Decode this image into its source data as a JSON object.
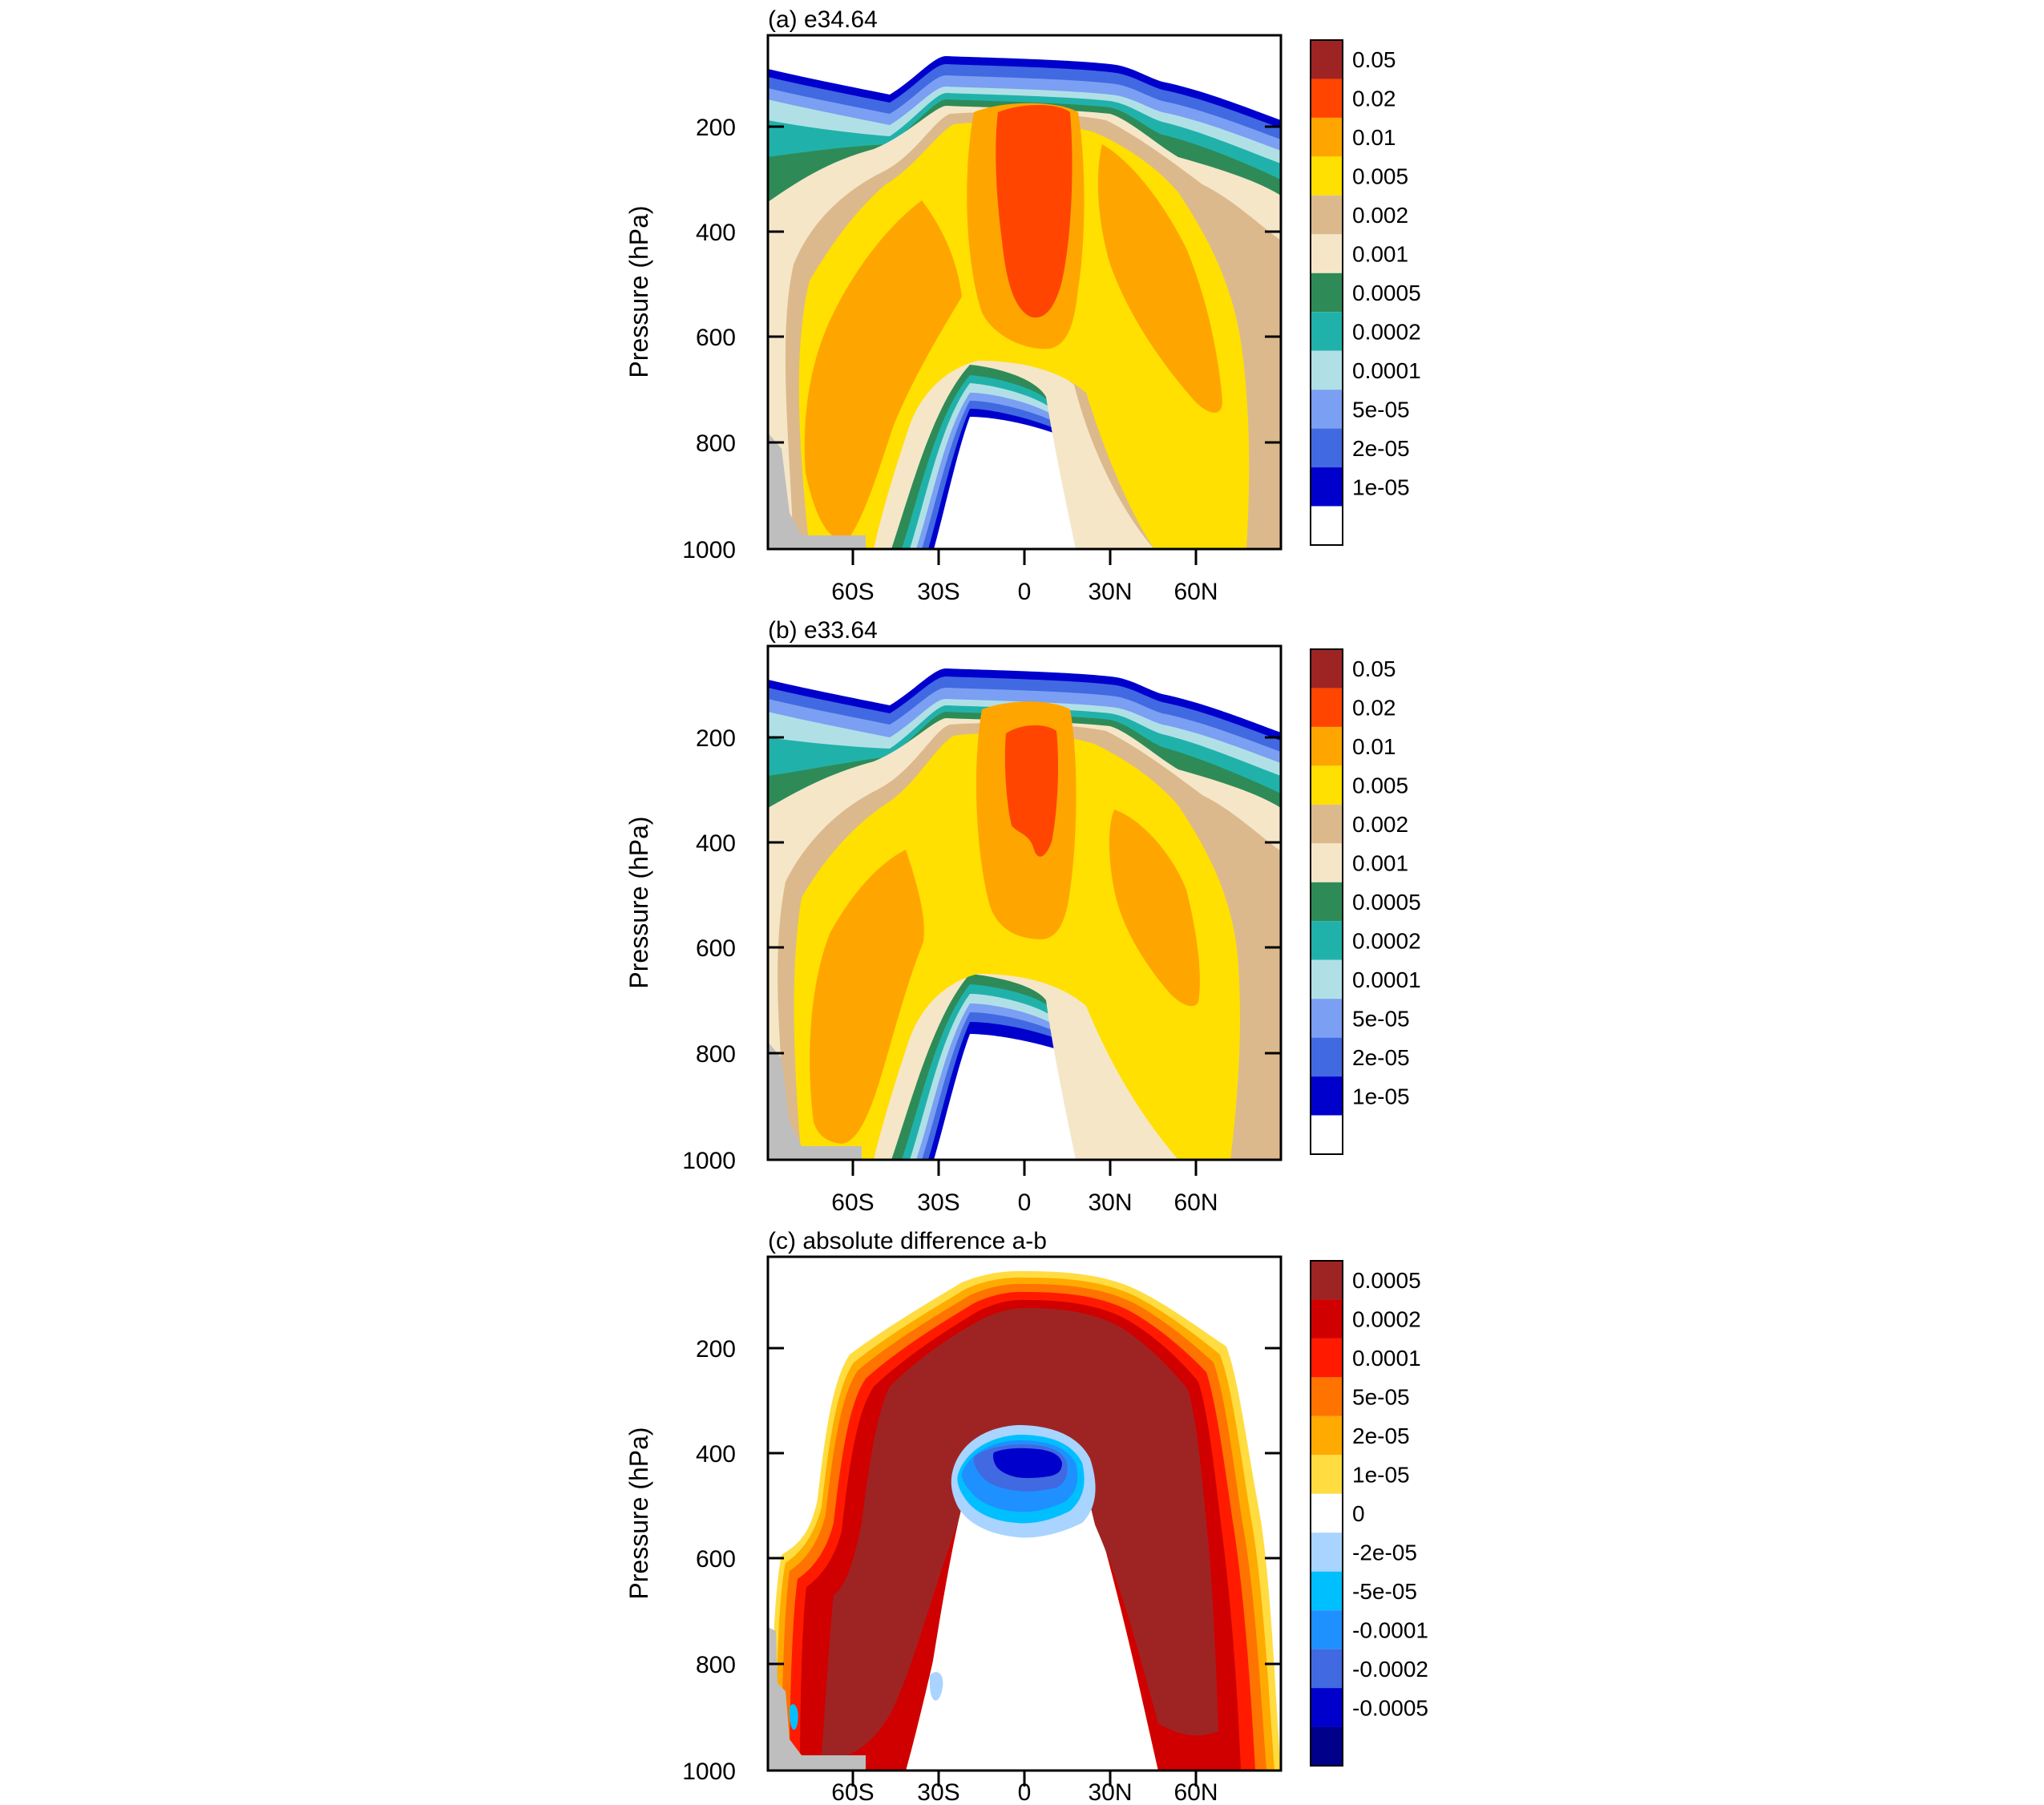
{
  "chart_data": [
    {
      "type": "contour",
      "title": "(a) e34.64",
      "ylabel": "Pressure (hPa)",
      "xlabel": "",
      "y_ticks": [
        "200",
        "400",
        "600",
        "800",
        "1000"
      ],
      "x_ticks": [
        "60S",
        "30S",
        "0",
        "30N",
        "60N"
      ],
      "ylim": [
        50,
        1000
      ],
      "xlim": [
        -90,
        90
      ],
      "y_inverted": true,
      "colorbar_labels": [
        "0.05",
        "0.02",
        "0.01",
        "0.005",
        "0.002",
        "0.001",
        "0.0005",
        "0.0002",
        "0.0001",
        "5e-05",
        "2e-05",
        "1e-05"
      ],
      "colorbar_colors": [
        "#9e2424",
        "#ff4500",
        "#ffa500",
        "#ffe000",
        "#dcb98c",
        "#f5e6c8",
        "#2e8b57",
        "#20b2aa",
        "#b0e0e6",
        "#7b9ff2",
        "#4169e1",
        "#0000cd",
        "#ffffff"
      ]
    },
    {
      "type": "contour",
      "title": "(b) e33.64",
      "ylabel": "Pressure (hPa)",
      "xlabel": "",
      "y_ticks": [
        "200",
        "400",
        "600",
        "800",
        "1000"
      ],
      "x_ticks": [
        "60S",
        "30S",
        "0",
        "30N",
        "60N"
      ],
      "ylim": [
        50,
        1000
      ],
      "xlim": [
        -90,
        90
      ],
      "y_inverted": true,
      "colorbar_labels": [
        "0.05",
        "0.02",
        "0.01",
        "0.005",
        "0.002",
        "0.001",
        "0.0005",
        "0.0002",
        "0.0001",
        "5e-05",
        "2e-05",
        "1e-05"
      ],
      "colorbar_colors": [
        "#9e2424",
        "#ff4500",
        "#ffa500",
        "#ffe000",
        "#dcb98c",
        "#f5e6c8",
        "#2e8b57",
        "#20b2aa",
        "#b0e0e6",
        "#7b9ff2",
        "#4169e1",
        "#0000cd",
        "#ffffff"
      ]
    },
    {
      "type": "contour",
      "title": "(c) absolute difference a-b",
      "ylabel": "Pressure (hPa)",
      "xlabel": "",
      "y_ticks": [
        "200",
        "400",
        "600",
        "800",
        "1000"
      ],
      "x_ticks": [
        "60S",
        "30S",
        "0",
        "30N",
        "60N"
      ],
      "ylim": [
        50,
        1000
      ],
      "xlim": [
        -90,
        90
      ],
      "y_inverted": true,
      "colorbar_labels": [
        "0.0005",
        "0.0002",
        "0.0001",
        "5e-05",
        "2e-05",
        "1e-05",
        "0",
        "-2e-05",
        "-5e-05",
        "-0.0001",
        "-0.0002",
        "-0.0005"
      ],
      "colorbar_colors": [
        "#9e2424",
        "#d00000",
        "#ff1a00",
        "#ff7300",
        "#ffaa00",
        "#ffdc40",
        "#ffffff",
        "#a8d4ff",
        "#00bfff",
        "#1e90ff",
        "#4169e1",
        "#0000cd",
        "#00008b"
      ]
    }
  ]
}
